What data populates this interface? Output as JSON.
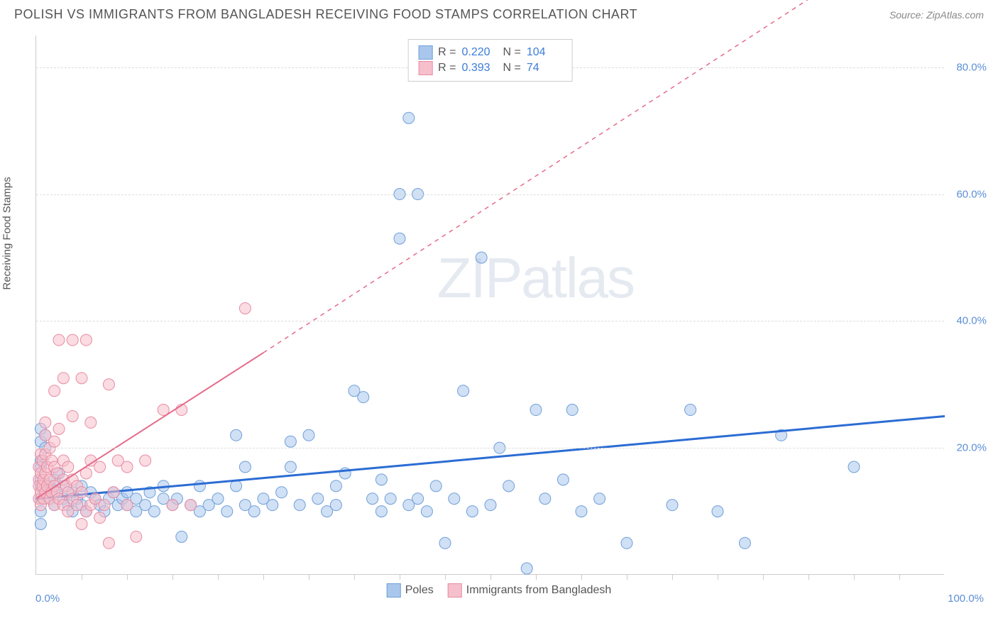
{
  "title": "POLISH VS IMMIGRANTS FROM BANGLADESH RECEIVING FOOD STAMPS CORRELATION CHART",
  "source": "Source: ZipAtlas.com",
  "y_axis_label": "Receiving Food Stamps",
  "watermark": {
    "bold": "ZIP",
    "light": "atlas"
  },
  "chart": {
    "type": "scatter",
    "xlim": [
      0,
      100
    ],
    "ylim": [
      0,
      85
    ],
    "x_min_label": "0.0%",
    "x_max_label": "100.0%",
    "y_ticks": [
      {
        "v": 20,
        "label": "20.0%"
      },
      {
        "v": 40,
        "label": "40.0%"
      },
      {
        "v": 60,
        "label": "60.0%"
      },
      {
        "v": 80,
        "label": "80.0%"
      }
    ],
    "x_tick_positions": [
      5,
      10,
      15,
      20,
      25,
      30,
      35,
      40,
      45,
      50,
      55,
      60,
      65,
      70,
      75,
      80,
      85,
      90,
      95
    ],
    "background_color": "#ffffff",
    "grid_color": "#dddddd",
    "marker_radius": 8,
    "marker_opacity": 0.55,
    "series": [
      {
        "name": "Poles",
        "color_fill": "#a9c7ec",
        "color_stroke": "#6f9fd8",
        "R": "0.220",
        "N": "104",
        "trend": {
          "x1": 0,
          "y1": 12,
          "x2": 100,
          "y2": 25,
          "extend_x": 100,
          "extend_y": 25,
          "color": "#2b6cd4",
          "width": 3,
          "solid_until_x": 100
        },
        "points": [
          [
            0.5,
            12
          ],
          [
            0.5,
            15
          ],
          [
            0.5,
            18
          ],
          [
            0.5,
            21
          ],
          [
            0.5,
            23
          ],
          [
            0.5,
            10
          ],
          [
            0.5,
            8
          ],
          [
            0.5,
            14
          ],
          [
            0.5,
            17
          ],
          [
            1,
            20
          ],
          [
            1,
            22
          ],
          [
            1.5,
            12
          ],
          [
            1.5,
            14
          ],
          [
            2,
            11
          ],
          [
            2,
            13
          ],
          [
            2,
            15
          ],
          [
            2.5,
            16
          ],
          [
            3,
            12
          ],
          [
            3,
            14
          ],
          [
            3.5,
            11
          ],
          [
            4,
            13
          ],
          [
            4,
            10
          ],
          [
            4.5,
            12
          ],
          [
            5,
            14
          ],
          [
            5,
            11
          ],
          [
            5.5,
            10
          ],
          [
            6,
            13
          ],
          [
            6.5,
            12
          ],
          [
            7,
            11
          ],
          [
            7.5,
            10
          ],
          [
            8,
            12
          ],
          [
            8.5,
            13
          ],
          [
            9,
            11
          ],
          [
            9.5,
            12
          ],
          [
            10,
            11
          ],
          [
            10,
            13
          ],
          [
            11,
            10
          ],
          [
            11,
            12
          ],
          [
            12,
            11
          ],
          [
            12.5,
            13
          ],
          [
            13,
            10
          ],
          [
            14,
            12
          ],
          [
            14,
            14
          ],
          [
            15,
            11
          ],
          [
            15.5,
            12
          ],
          [
            16,
            6
          ],
          [
            17,
            11
          ],
          [
            18,
            10
          ],
          [
            18,
            14
          ],
          [
            19,
            11
          ],
          [
            20,
            12
          ],
          [
            21,
            10
          ],
          [
            22,
            14
          ],
          [
            22,
            22
          ],
          [
            23,
            11
          ],
          [
            23,
            17
          ],
          [
            24,
            10
          ],
          [
            25,
            12
          ],
          [
            26,
            11
          ],
          [
            27,
            13
          ],
          [
            28,
            21
          ],
          [
            28,
            17
          ],
          [
            29,
            11
          ],
          [
            30,
            22
          ],
          [
            31,
            12
          ],
          [
            32,
            10
          ],
          [
            33,
            11
          ],
          [
            33,
            14
          ],
          [
            34,
            16
          ],
          [
            35,
            29
          ],
          [
            36,
            28
          ],
          [
            37,
            12
          ],
          [
            38,
            10
          ],
          [
            38,
            15
          ],
          [
            39,
            12
          ],
          [
            40,
            60
          ],
          [
            40,
            53
          ],
          [
            41,
            11
          ],
          [
            41,
            72
          ],
          [
            42,
            12
          ],
          [
            42,
            60
          ],
          [
            43,
            10
          ],
          [
            44,
            14
          ],
          [
            45,
            5
          ],
          [
            46,
            12
          ],
          [
            47,
            29
          ],
          [
            48,
            10
          ],
          [
            49,
            50
          ],
          [
            50,
            11
          ],
          [
            51,
            20
          ],
          [
            52,
            14
          ],
          [
            54,
            1
          ],
          [
            55,
            26
          ],
          [
            56,
            12
          ],
          [
            58,
            15
          ],
          [
            59,
            26
          ],
          [
            60,
            10
          ],
          [
            62,
            12
          ],
          [
            65,
            5
          ],
          [
            70,
            11
          ],
          [
            72,
            26
          ],
          [
            75,
            10
          ],
          [
            78,
            5
          ],
          [
            82,
            22
          ],
          [
            90,
            17
          ]
        ]
      },
      {
        "name": "Immigrants from Bangladesh",
        "color_fill": "#f5c0cb",
        "color_stroke": "#e88ba2",
        "R": "0.393",
        "N": "74",
        "trend": {
          "x1": 0,
          "y1": 12,
          "x2": 25,
          "y2": 35,
          "extend_x": 95,
          "extend_y": 100,
          "color": "#e56b8a",
          "width": 2,
          "solid_until_x": 25
        },
        "points": [
          [
            0.3,
            12
          ],
          [
            0.3,
            15
          ],
          [
            0.3,
            17
          ],
          [
            0.3,
            14
          ],
          [
            0.5,
            13
          ],
          [
            0.5,
            16
          ],
          [
            0.5,
            19
          ],
          [
            0.5,
            11
          ],
          [
            0.7,
            14
          ],
          [
            0.7,
            18
          ],
          [
            0.8,
            12
          ],
          [
            0.8,
            15
          ],
          [
            1,
            13
          ],
          [
            1,
            16
          ],
          [
            1,
            19
          ],
          [
            1,
            22
          ],
          [
            1,
            24
          ],
          [
            1.2,
            14
          ],
          [
            1.2,
            17
          ],
          [
            1.5,
            12
          ],
          [
            1.5,
            15
          ],
          [
            1.5,
            20
          ],
          [
            1.7,
            13
          ],
          [
            1.7,
            18
          ],
          [
            2,
            11
          ],
          [
            2,
            14
          ],
          [
            2,
            17
          ],
          [
            2,
            21
          ],
          [
            2,
            29
          ],
          [
            2.3,
            13
          ],
          [
            2.3,
            16
          ],
          [
            2.5,
            12
          ],
          [
            2.5,
            23
          ],
          [
            2.5,
            37
          ],
          [
            3,
            11
          ],
          [
            3,
            15
          ],
          [
            3,
            18
          ],
          [
            3,
            31
          ],
          [
            3.3,
            14
          ],
          [
            3.5,
            10
          ],
          [
            3.5,
            13
          ],
          [
            3.5,
            17
          ],
          [
            4,
            12
          ],
          [
            4,
            15
          ],
          [
            4,
            25
          ],
          [
            4,
            37
          ],
          [
            4.5,
            11
          ],
          [
            4.5,
            14
          ],
          [
            5,
            31
          ],
          [
            5,
            8
          ],
          [
            5,
            13
          ],
          [
            5.5,
            10
          ],
          [
            5.5,
            16
          ],
          [
            5.5,
            37
          ],
          [
            6,
            11
          ],
          [
            6,
            18
          ],
          [
            6,
            24
          ],
          [
            6.5,
            12
          ],
          [
            7,
            9
          ],
          [
            7,
            17
          ],
          [
            7.5,
            11
          ],
          [
            8,
            30
          ],
          [
            8,
            5
          ],
          [
            8.5,
            13
          ],
          [
            9,
            18
          ],
          [
            10,
            11
          ],
          [
            10,
            17
          ],
          [
            11,
            6
          ],
          [
            12,
            18
          ],
          [
            14,
            26
          ],
          [
            15,
            11
          ],
          [
            16,
            26
          ],
          [
            17,
            11
          ],
          [
            23,
            42
          ]
        ]
      }
    ]
  },
  "bottom_legend": [
    {
      "label": "Poles",
      "fill": "#a9c7ec",
      "stroke": "#6f9fd8"
    },
    {
      "label": "Immigrants from Bangladesh",
      "fill": "#f5c0cb",
      "stroke": "#e88ba2"
    }
  ]
}
